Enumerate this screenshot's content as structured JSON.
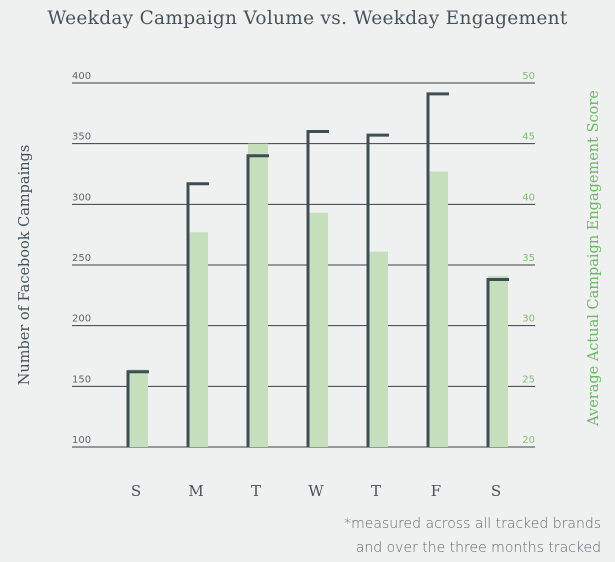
{
  "chart_data": {
    "type": "bar",
    "title": "Weekday Campaign Volume vs. Weekday Engagement",
    "categories": [
      "S",
      "M",
      "T",
      "W",
      "T",
      "F",
      "S"
    ],
    "series": [
      {
        "name": "Number of Facebook Campaings",
        "axis": "left",
        "style": "bracket",
        "color": "#3f4e52",
        "values": [
          162,
          317,
          340,
          360,
          357,
          391,
          238
        ]
      },
      {
        "name": "Average Actual Campaign Engagement Score",
        "axis": "right",
        "style": "bar",
        "color": "#c5dfbc",
        "values": [
          26.4,
          37.7,
          45.0,
          39.3,
          36.1,
          42.7,
          34.1
        ]
      }
    ],
    "ylabel": "Number of Facebook Campaings",
    "ylabel_right": "Average Actual Campaign Engagement Score",
    "ylim": [
      100,
      400
    ],
    "ylim_right": [
      20,
      50
    ],
    "yticks": [
      "100",
      "150",
      "200",
      "250",
      "300",
      "350",
      "400"
    ],
    "yticks_right": [
      "20",
      "25",
      "30",
      "35",
      "40",
      "45",
      "50"
    ],
    "grid": true,
    "note_lines": [
      "*measured across all tracked brands",
      "and over the three months tracked"
    ]
  }
}
